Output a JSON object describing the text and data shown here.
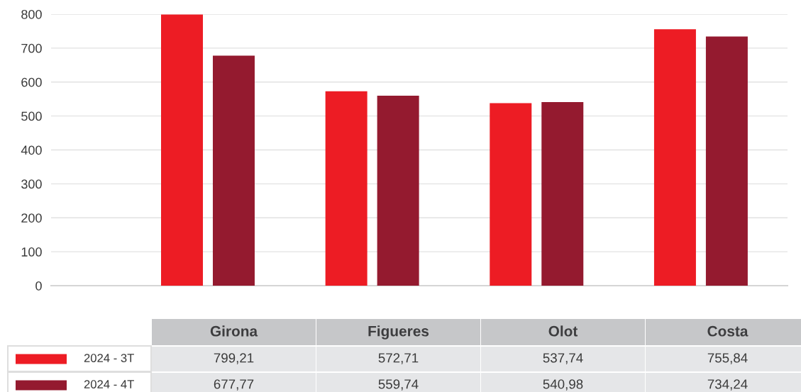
{
  "chart_data": {
    "type": "bar",
    "categories": [
      "Girona",
      "Figueres",
      "Olot",
      "Costa"
    ],
    "series": [
      {
        "name": "2024 - 3T",
        "color": "#ed1c24",
        "values": [
          799.21,
          572.71,
          537.74,
          755.84
        ],
        "value_labels": [
          "799,21",
          "572,71",
          "537,74",
          "755,84"
        ]
      },
      {
        "name": "2024 - 4T",
        "color": "#941a2f",
        "values": [
          677.77,
          559.74,
          540.98,
          734.24
        ],
        "value_labels": [
          "677,77",
          "559,74",
          "540,98",
          "734,24"
        ]
      }
    ],
    "ylim": [
      0,
      800
    ],
    "yticks": [
      0,
      100,
      200,
      300,
      400,
      500,
      600,
      700,
      800
    ],
    "grid": "y",
    "legend": "bottom"
  }
}
